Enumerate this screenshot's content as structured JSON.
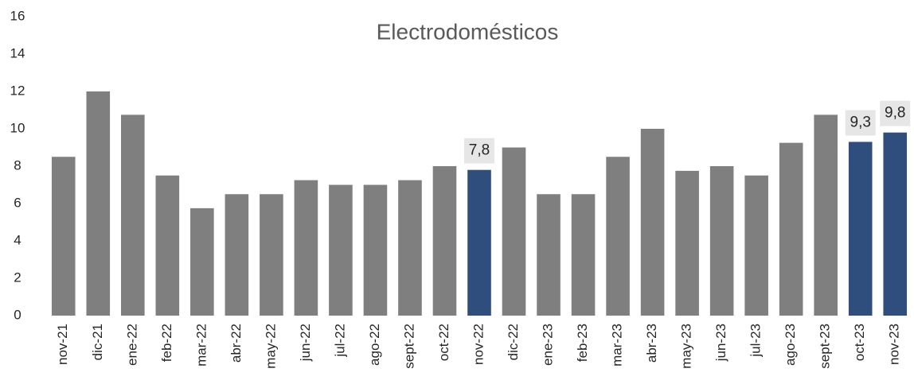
{
  "chart_data": {
    "type": "bar",
    "title": "Electrodomésticos",
    "categories": [
      "nov-21",
      "dic-21",
      "ene-22",
      "feb-22",
      "mar-22",
      "abr-22",
      "may-22",
      "jun-22",
      "jul-22",
      "ago-22",
      "sept-22",
      "oct-22",
      "nov-22",
      "dic-22",
      "ene-23",
      "feb-23",
      "mar-23",
      "abr-23",
      "may-23",
      "jun-23",
      "jul-23",
      "ago-23",
      "sept-23",
      "oct-23",
      "nov-23"
    ],
    "values": [
      8.5,
      12,
      10.75,
      7.5,
      5.75,
      6.5,
      6.5,
      7.25,
      7,
      7,
      7.25,
      8,
      7.8,
      9,
      6.5,
      6.5,
      8.5,
      10,
      7.75,
      8,
      7.5,
      9.25,
      10.75,
      9.3,
      9.8
    ],
    "value_labels": [
      null,
      null,
      null,
      null,
      null,
      null,
      null,
      null,
      null,
      null,
      null,
      null,
      "7,8",
      null,
      null,
      null,
      null,
      null,
      null,
      null,
      null,
      null,
      null,
      "9,3",
      "9,8"
    ],
    "colors": [
      "#7f7f7f",
      "#7f7f7f",
      "#7f7f7f",
      "#7f7f7f",
      "#7f7f7f",
      "#7f7f7f",
      "#7f7f7f",
      "#7f7f7f",
      "#7f7f7f",
      "#7f7f7f",
      "#7f7f7f",
      "#7f7f7f",
      "#2f4e7e",
      "#7f7f7f",
      "#7f7f7f",
      "#7f7f7f",
      "#7f7f7f",
      "#7f7f7f",
      "#7f7f7f",
      "#7f7f7f",
      "#7f7f7f",
      "#7f7f7f",
      "#7f7f7f",
      "#2f4e7e",
      "#2f4e7e"
    ],
    "ylim": [
      0,
      16
    ],
    "yticks": [
      0,
      2,
      4,
      6,
      8,
      10,
      12,
      14,
      16
    ],
    "grid": false
  }
}
